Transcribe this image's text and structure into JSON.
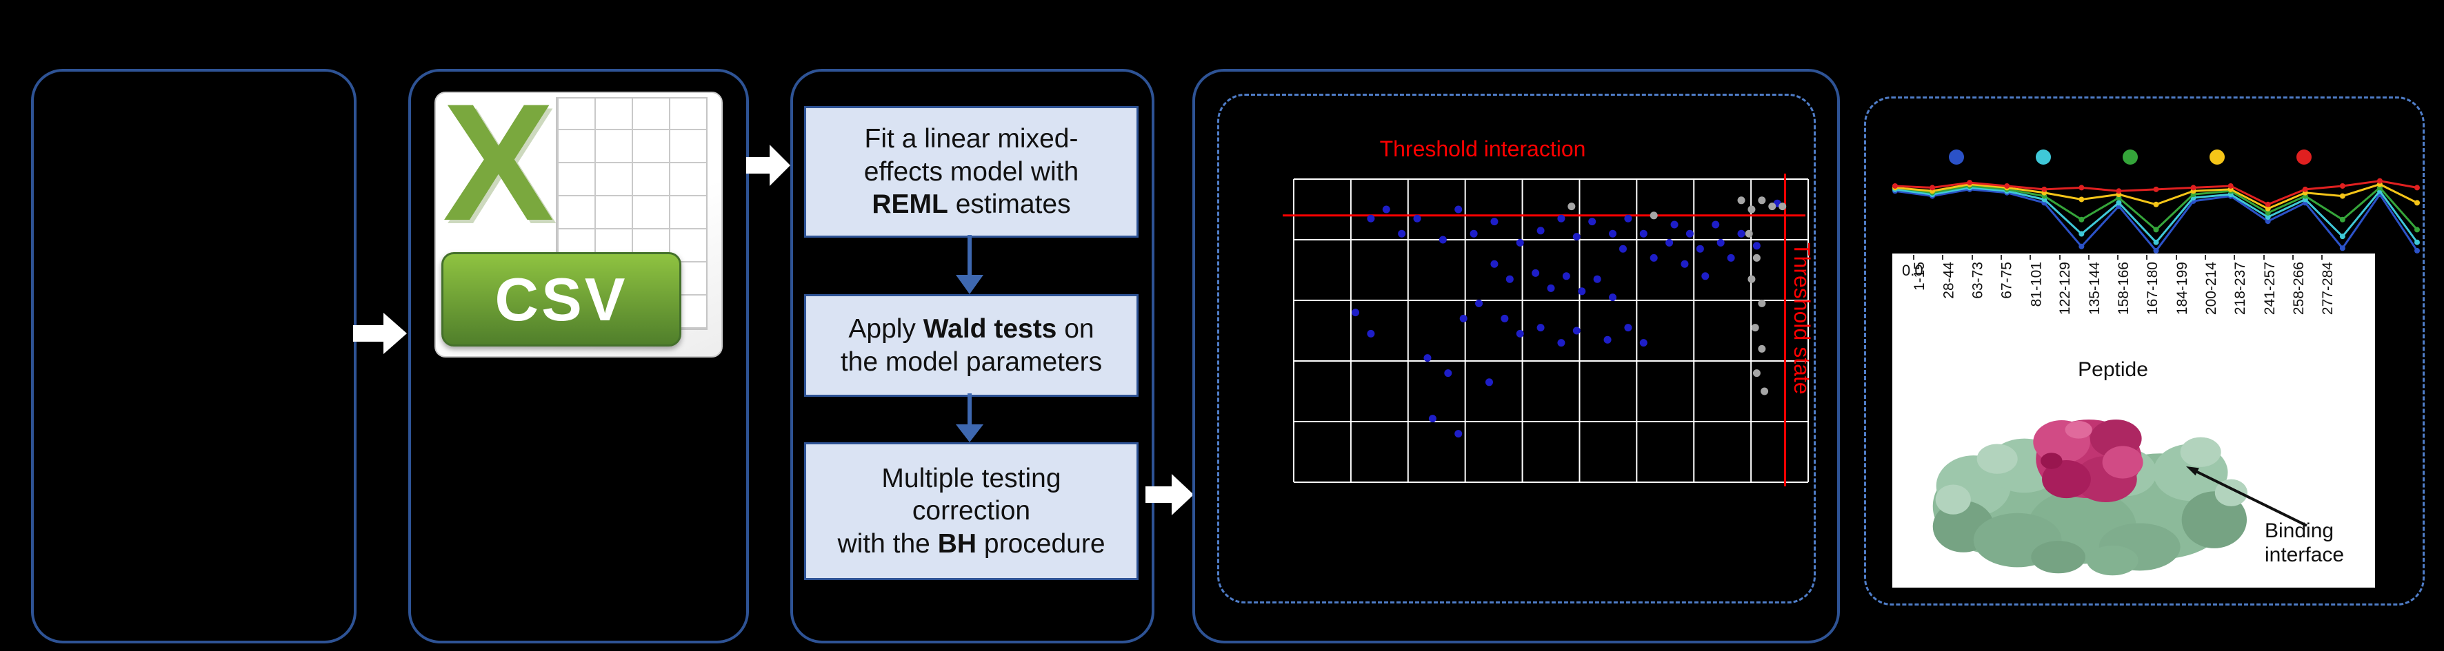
{
  "colors": {
    "background": "#000000",
    "panel_border": "#2E5395",
    "dashed_border": "#4F7DC8",
    "step_fill": "#DAE3F3",
    "step_border": "#2E5395",
    "flow_arrow": "#FFFFFF",
    "down_arrow": "#3E68B0",
    "threshold": "#FF0000",
    "csv_green": "#7AA83E",
    "protein_surface": "#8CBA9A",
    "binding_site": "#C13572"
  },
  "icons": {
    "csv_file": "csv-file-icon",
    "flow_arrow": "right-block-arrow-icon",
    "down_arrow": "down-arrow-icon"
  },
  "csv_icon": {
    "x_glyph": "X",
    "label": "CSV"
  },
  "pipeline": {
    "steps": [
      {
        "name": "reml-fit",
        "lines": [
          [
            {
              "t": "Fit a linear mixed-"
            }
          ],
          [
            {
              "t": "effects model with"
            }
          ],
          [
            {
              "t": "REML",
              "b": 1
            },
            {
              "t": " estimates"
            }
          ]
        ]
      },
      {
        "name": "wald-tests",
        "lines": [
          [
            {
              "t": "Apply "
            },
            {
              "t": "Wald tests",
              "b": 1
            },
            {
              "t": " on"
            }
          ],
          [
            {
              "t": "the model parameters"
            }
          ]
        ]
      },
      {
        "name": "bh-correction",
        "lines": [
          [
            {
              "t": "Multiple testing"
            }
          ],
          [
            {
              "t": "correction"
            }
          ],
          [
            {
              "t": "with the "
            },
            {
              "t": "BH",
              "b": 1
            },
            {
              "t": " procedure"
            }
          ]
        ]
      }
    ]
  },
  "chart_data": [
    {
      "id": "pvalue-scatter",
      "type": "scatter",
      "grid": true,
      "threshold_h": {
        "label": "Threshold interaction",
        "y": 0.88,
        "color": "#FF0000"
      },
      "threshold_v": {
        "label": "Threshold state",
        "x": 0.955,
        "color": "#FF0000"
      },
      "series": [
        {
          "name": "significant",
          "color": "#1E1EC8",
          "points": [
            [
              0.15,
              0.87
            ],
            [
              0.21,
              0.82
            ],
            [
              0.32,
              0.9
            ],
            [
              0.35,
              0.82
            ],
            [
              0.39,
              0.86
            ],
            [
              0.44,
              0.79
            ],
            [
              0.48,
              0.83
            ],
            [
              0.52,
              0.87
            ],
            [
              0.55,
              0.81
            ],
            [
              0.58,
              0.86
            ],
            [
              0.62,
              0.82
            ],
            [
              0.65,
              0.87
            ],
            [
              0.68,
              0.82
            ],
            [
              0.64,
              0.77
            ],
            [
              0.7,
              0.74
            ],
            [
              0.73,
              0.79
            ],
            [
              0.74,
              0.85
            ],
            [
              0.77,
              0.82
            ],
            [
              0.79,
              0.77
            ],
            [
              0.82,
              0.85
            ],
            [
              0.83,
              0.79
            ],
            [
              0.39,
              0.72
            ],
            [
              0.42,
              0.67
            ],
            [
              0.47,
              0.69
            ],
            [
              0.5,
              0.64
            ],
            [
              0.53,
              0.68
            ],
            [
              0.56,
              0.63
            ],
            [
              0.59,
              0.67
            ],
            [
              0.62,
              0.61
            ],
            [
              0.36,
              0.59
            ],
            [
              0.33,
              0.54
            ],
            [
              0.41,
              0.54
            ],
            [
              0.44,
              0.49
            ],
            [
              0.48,
              0.51
            ],
            [
              0.52,
              0.46
            ],
            [
              0.55,
              0.5
            ],
            [
              0.61,
              0.47
            ],
            [
              0.65,
              0.51
            ],
            [
              0.68,
              0.46
            ],
            [
              0.12,
              0.56
            ],
            [
              0.15,
              0.49
            ],
            [
              0.26,
              0.41
            ],
            [
              0.3,
              0.36
            ],
            [
              0.38,
              0.33
            ],
            [
              0.27,
              0.21
            ],
            [
              0.32,
              0.16
            ],
            [
              0.76,
              0.72
            ],
            [
              0.8,
              0.68
            ],
            [
              0.85,
              0.74
            ],
            [
              0.87,
              0.82
            ],
            [
              0.9,
              0.78
            ],
            [
              0.94,
              0.92
            ],
            [
              0.18,
              0.9
            ],
            [
              0.24,
              0.87
            ],
            [
              0.29,
              0.8
            ]
          ]
        },
        {
          "name": "not-significant",
          "color": "#A6A6A6",
          "points": [
            [
              0.87,
              0.93
            ],
            [
              0.89,
              0.9
            ],
            [
              0.91,
              0.93
            ],
            [
              0.93,
              0.91
            ],
            [
              0.885,
              0.82
            ],
            [
              0.9,
              0.74
            ],
            [
              0.89,
              0.67
            ],
            [
              0.91,
              0.59
            ],
            [
              0.897,
              0.51
            ],
            [
              0.91,
              0.44
            ],
            [
              0.9,
              0.36
            ],
            [
              0.915,
              0.3
            ],
            [
              0.54,
              0.91
            ],
            [
              0.7,
              0.88
            ],
            [
              0.95,
              0.91
            ]
          ]
        }
      ]
    },
    {
      "id": "woods-plot",
      "type": "line",
      "categories": [
        "1-15",
        "28-44",
        "63-73",
        "67-75",
        "81-101",
        "122-129",
        "135-144",
        "158-166",
        "167-180",
        "184-199",
        "200-214",
        "218-237",
        "241-257",
        "258-266",
        "277-284"
      ],
      "xlabel": "Peptide",
      "y_tick_label": "0.0",
      "ylim": [
        0,
        1
      ],
      "legend_dot_colors": [
        "#2B52C8",
        "#3FC8D8",
        "#35A53A",
        "#F5C518",
        "#E02020"
      ],
      "series": [
        {
          "name": "state-blue",
          "color": "#2B52C8",
          "values": [
            0.76,
            0.7,
            0.78,
            0.74,
            0.62,
            0.1,
            0.58,
            0.05,
            0.64,
            0.7,
            0.4,
            0.62,
            0.08,
            0.72,
            0.05
          ]
        },
        {
          "name": "state-cyan",
          "color": "#3FC8D8",
          "values": [
            0.78,
            0.72,
            0.8,
            0.76,
            0.66,
            0.25,
            0.62,
            0.15,
            0.68,
            0.72,
            0.45,
            0.66,
            0.22,
            0.76,
            0.15
          ]
        },
        {
          "name": "state-green",
          "color": "#35A53A",
          "values": [
            0.8,
            0.74,
            0.82,
            0.78,
            0.7,
            0.42,
            0.68,
            0.3,
            0.72,
            0.76,
            0.5,
            0.7,
            0.42,
            0.8,
            0.3
          ]
        },
        {
          "name": "state-yellow",
          "color": "#F5C518",
          "values": [
            0.8,
            0.76,
            0.84,
            0.8,
            0.74,
            0.66,
            0.72,
            0.6,
            0.76,
            0.78,
            0.55,
            0.74,
            0.7,
            0.84,
            0.62
          ]
        },
        {
          "name": "state-red",
          "color": "#E02020",
          "values": [
            0.82,
            0.8,
            0.86,
            0.82,
            0.78,
            0.8,
            0.76,
            0.78,
            0.8,
            0.82,
            0.6,
            0.78,
            0.82,
            0.88,
            0.8
          ]
        }
      ]
    }
  ],
  "structure_figure": {
    "binding_line1": "Binding",
    "binding_line2": "interface"
  }
}
